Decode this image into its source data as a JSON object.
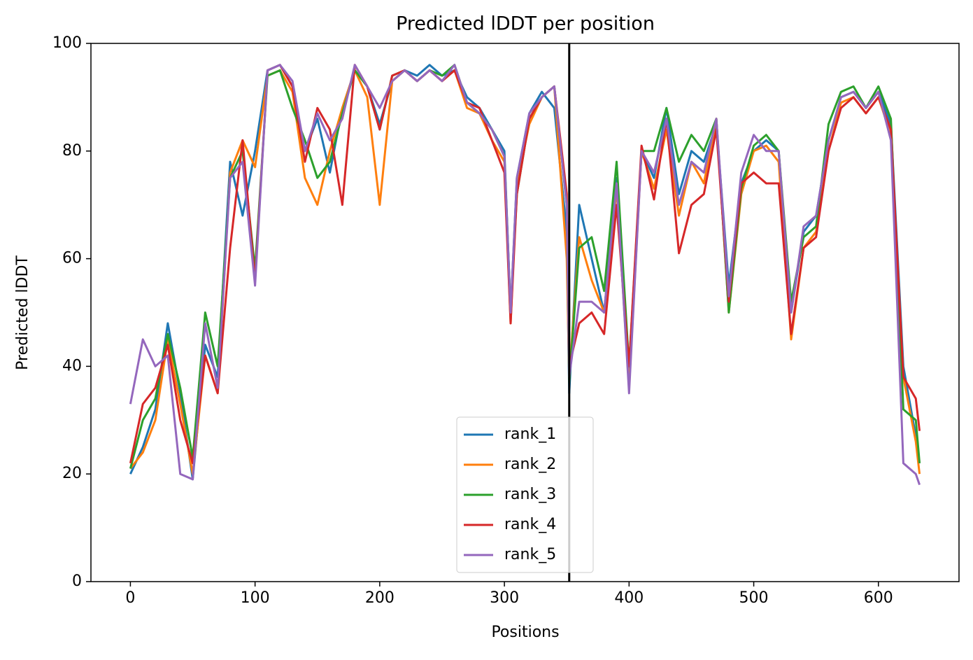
{
  "chart_data": {
    "type": "line",
    "title": "Predicted lDDT per position",
    "xlabel": "Positions",
    "ylabel": "Predicted lDDT",
    "x": [
      0,
      10,
      20,
      30,
      40,
      50,
      60,
      70,
      80,
      90,
      100,
      110,
      120,
      130,
      140,
      150,
      160,
      170,
      180,
      190,
      200,
      210,
      220,
      230,
      240,
      250,
      260,
      270,
      280,
      290,
      300,
      305,
      310,
      320,
      330,
      340,
      350,
      352,
      360,
      370,
      380,
      390,
      400,
      410,
      420,
      430,
      440,
      450,
      460,
      470,
      480,
      490,
      500,
      510,
      520,
      530,
      540,
      550,
      560,
      570,
      580,
      590,
      600,
      610,
      620,
      630,
      633
    ],
    "series": [
      {
        "name": "rank_1",
        "color": "#1f77b4",
        "values": [
          20,
          25,
          32,
          48,
          35,
          19,
          44,
          38,
          78,
          68,
          80,
          95,
          96,
          92,
          80,
          86,
          76,
          88,
          95,
          92,
          85,
          93,
          95,
          94,
          96,
          94,
          95,
          90,
          88,
          84,
          80,
          50,
          75,
          87,
          91,
          88,
          65,
          35,
          70,
          60,
          50,
          75,
          38,
          80,
          75,
          88,
          72,
          80,
          78,
          85,
          55,
          74,
          80,
          82,
          80,
          50,
          65,
          68,
          82,
          90,
          91,
          88,
          91,
          85,
          40,
          27,
          22
        ]
      },
      {
        "name": "rank_2",
        "color": "#ff7f0e",
        "values": [
          21,
          24,
          30,
          45,
          33,
          20,
          42,
          35,
          76,
          82,
          77,
          94,
          95,
          91,
          75,
          70,
          80,
          88,
          95,
          90,
          70,
          93,
          95,
          93,
          95,
          93,
          95,
          88,
          87,
          82,
          78,
          48,
          74,
          85,
          90,
          92,
          60,
          38,
          64,
          56,
          50,
          73,
          36,
          80,
          73,
          84,
          68,
          78,
          74,
          86,
          50,
          72,
          80,
          81,
          78,
          45,
          62,
          65,
          80,
          89,
          90,
          87,
          90,
          83,
          38,
          26,
          20
        ]
      },
      {
        "name": "rank_3",
        "color": "#2ca02c",
        "values": [
          21,
          30,
          34,
          46,
          36,
          23,
          50,
          40,
          75,
          80,
          58,
          94,
          95,
          88,
          82,
          75,
          78,
          87,
          95,
          92,
          84,
          94,
          95,
          93,
          95,
          94,
          96,
          89,
          87,
          84,
          79,
          50,
          72,
          86,
          90,
          92,
          70,
          37,
          62,
          64,
          54,
          78,
          40,
          80,
          80,
          88,
          78,
          83,
          80,
          86,
          50,
          73,
          81,
          83,
          80,
          52,
          64,
          66,
          85,
          91,
          92,
          88,
          92,
          86,
          32,
          30,
          22
        ]
      },
      {
        "name": "rank_4",
        "color": "#d62728",
        "values": [
          22,
          33,
          36,
          44,
          30,
          22,
          42,
          35,
          62,
          82,
          56,
          95,
          96,
          92,
          78,
          88,
          84,
          70,
          96,
          92,
          84,
          94,
          95,
          93,
          95,
          93,
          95,
          89,
          88,
          82,
          76,
          48,
          72,
          86,
          90,
          92,
          72,
          40,
          48,
          50,
          46,
          70,
          40,
          81,
          71,
          86,
          61,
          70,
          72,
          84,
          52,
          74,
          76,
          74,
          74,
          46,
          62,
          64,
          80,
          88,
          90,
          87,
          90,
          84,
          38,
          34,
          28
        ]
      },
      {
        "name": "rank_5",
        "color": "#9467bd",
        "values": [
          33,
          45,
          40,
          42,
          20,
          19,
          48,
          36,
          75,
          78,
          55,
          95,
          96,
          93,
          80,
          87,
          82,
          86,
          96,
          92,
          88,
          93,
          95,
          93,
          95,
          93,
          96,
          89,
          87,
          84,
          79,
          50,
          75,
          87,
          90,
          92,
          70,
          38,
          52,
          52,
          50,
          74,
          35,
          80,
          76,
          86,
          70,
          78,
          76,
          86,
          53,
          76,
          83,
          80,
          80,
          50,
          66,
          68,
          82,
          90,
          91,
          88,
          91,
          82,
          22,
          20,
          18
        ]
      }
    ],
    "vline": 352,
    "xlim": [
      -31.65,
      664.65
    ],
    "xticks": [
      0,
      100,
      200,
      300,
      400,
      500,
      600
    ],
    "ylim": [
      0,
      100
    ],
    "yticks": [
      0,
      20,
      40,
      60,
      80,
      100
    ],
    "legend": "lower center"
  }
}
